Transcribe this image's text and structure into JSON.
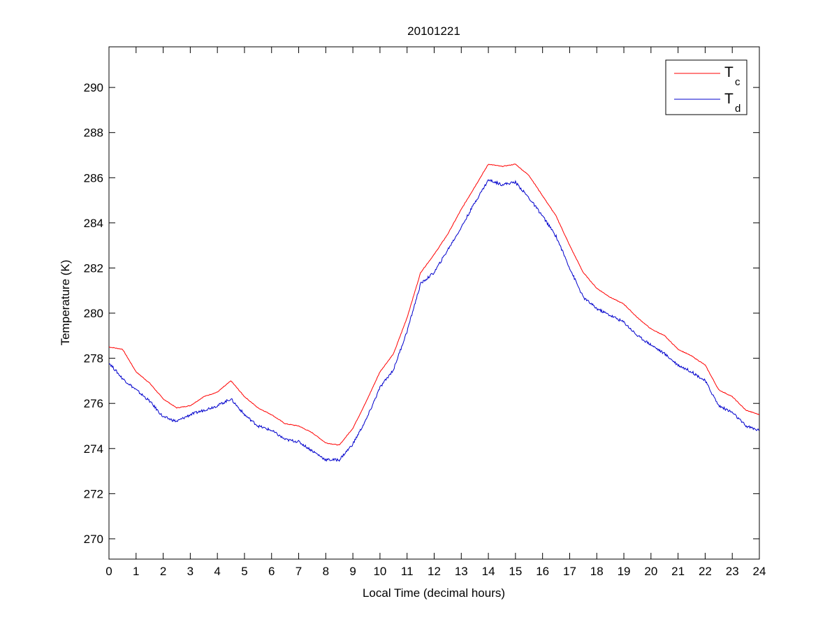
{
  "chart_data": {
    "type": "line",
    "title": "20101221",
    "xlabel": "Local Time (decimal hours)",
    "ylabel": "Temperature (K)",
    "xlim": [
      0,
      24
    ],
    "ylim": [
      269.1,
      291.8
    ],
    "xticks": [
      0,
      1,
      2,
      3,
      4,
      5,
      6,
      7,
      8,
      9,
      10,
      11,
      12,
      13,
      14,
      15,
      16,
      17,
      18,
      19,
      20,
      21,
      22,
      23,
      24
    ],
    "yticks": [
      270,
      272,
      274,
      276,
      278,
      280,
      282,
      284,
      286,
      288,
      290
    ],
    "grid": false,
    "legend_position": "top-right",
    "x": [
      0,
      0.5,
      1,
      1.5,
      2,
      2.5,
      3,
      3.5,
      4,
      4.5,
      5,
      5.5,
      6,
      6.5,
      7,
      7.5,
      8,
      8.5,
      9,
      9.5,
      10,
      10.5,
      11,
      11.5,
      12,
      12.5,
      13,
      13.5,
      14,
      14.5,
      15,
      15.5,
      16,
      16.5,
      17,
      17.5,
      18,
      18.5,
      19,
      19.5,
      20,
      20.5,
      21,
      21.5,
      22,
      22.5,
      23,
      23.5,
      24
    ],
    "series": [
      {
        "name": "T",
        "subscript": "c",
        "color": "#ff0000",
        "values": [
          278.5,
          278.4,
          277.4,
          276.9,
          276.2,
          275.8,
          275.9,
          276.3,
          276.5,
          277.0,
          276.3,
          275.8,
          275.5,
          275.1,
          275.0,
          274.7,
          274.25,
          274.15,
          274.9,
          276.1,
          277.4,
          278.2,
          279.8,
          281.8,
          282.6,
          283.5,
          284.6,
          285.6,
          286.6,
          286.5,
          286.6,
          286.1,
          285.2,
          284.3,
          283.0,
          281.8,
          281.1,
          280.7,
          280.4,
          279.8,
          279.3,
          279.0,
          278.4,
          278.1,
          277.7,
          276.6,
          276.3,
          275.7,
          275.5
        ]
      },
      {
        "name": "T",
        "subscript": "d",
        "color": "#0000cc",
        "values": [
          277.8,
          277.1,
          276.6,
          276.1,
          275.4,
          275.2,
          275.5,
          275.7,
          275.9,
          276.2,
          275.5,
          275.0,
          274.8,
          274.4,
          274.3,
          273.9,
          273.5,
          273.5,
          274.2,
          275.3,
          276.7,
          277.5,
          279.2,
          281.3,
          281.8,
          282.8,
          283.8,
          284.9,
          285.9,
          285.7,
          285.8,
          285.1,
          284.3,
          283.4,
          282.0,
          280.7,
          280.2,
          279.9,
          279.6,
          279.0,
          278.6,
          278.2,
          277.7,
          277.4,
          277.0,
          275.9,
          275.6,
          275.0,
          274.8
        ]
      }
    ]
  }
}
